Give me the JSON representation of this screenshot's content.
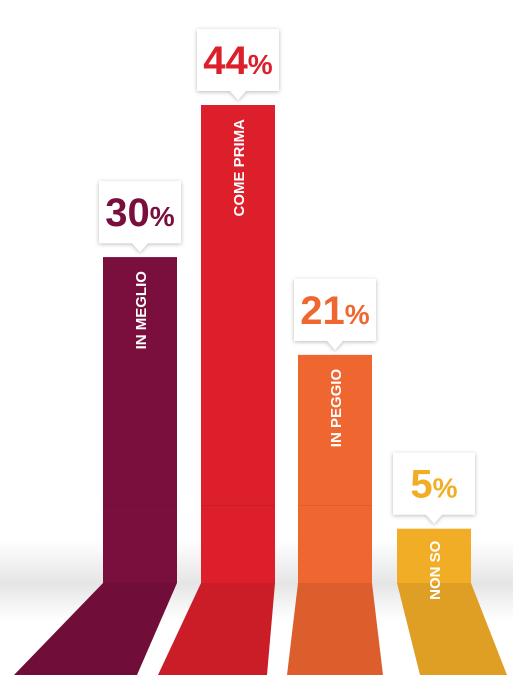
{
  "chart_data": {
    "type": "bar",
    "categories": [
      "IN MEGLIO",
      "COME PRIMA",
      "IN PEGGIO",
      "NON SO"
    ],
    "values": [
      30,
      44,
      21,
      5
    ],
    "value_suffix": "%",
    "colors": [
      "#7a0f3e",
      "#dc1f2b",
      "#ef6630",
      "#f2ad27"
    ],
    "title": "",
    "xlabel": "",
    "ylabel": "",
    "ylim": [
      0,
      44
    ],
    "grid": false,
    "legend": "none"
  }
}
